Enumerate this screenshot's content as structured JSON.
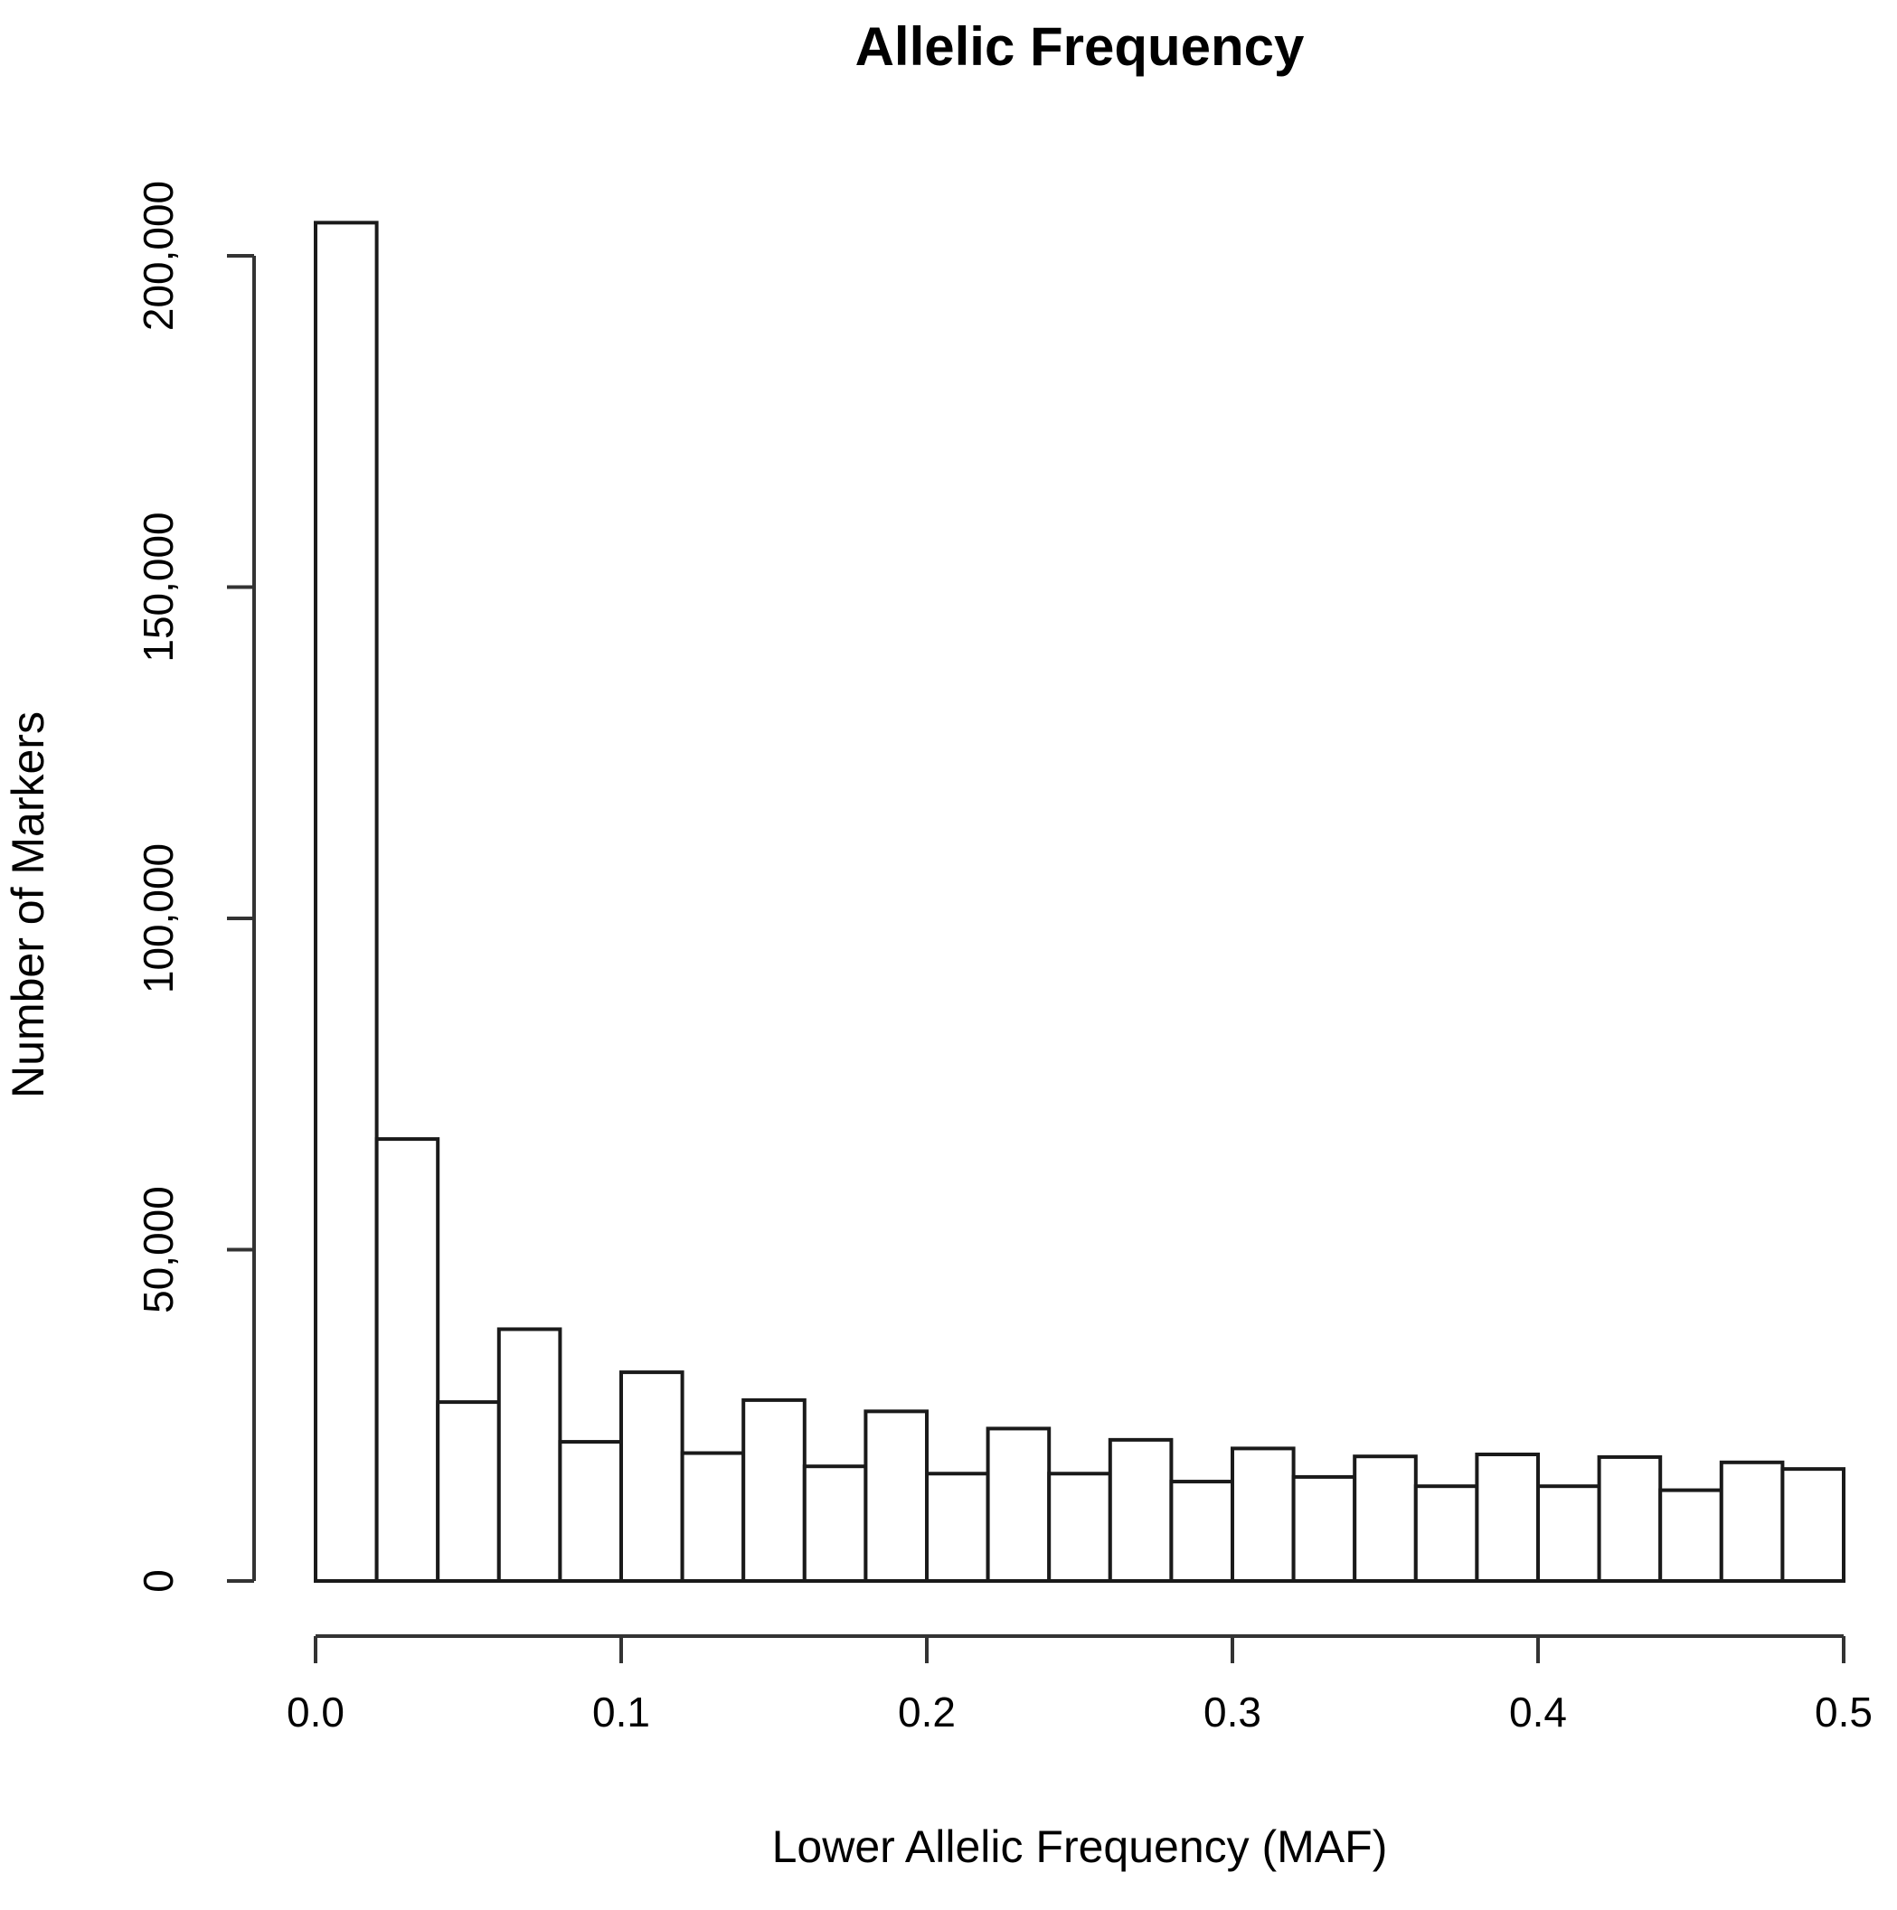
{
  "chart_data": {
    "type": "bar",
    "title": "Allelic Frequency",
    "xlabel": "Lower Allelic Frequency (MAF)",
    "ylabel": "Number of Markers",
    "xlim": [
      0,
      0.5
    ],
    "ylim": [
      0,
      200000
    ],
    "grid": false,
    "x_ticks": [
      {
        "value": 0.0,
        "label": "0.0"
      },
      {
        "value": 0.1,
        "label": "0.1"
      },
      {
        "value": 0.2,
        "label": "0.2"
      },
      {
        "value": 0.3,
        "label": "0.3"
      },
      {
        "value": 0.4,
        "label": "0.4"
      },
      {
        "value": 0.5,
        "label": "0.5"
      }
    ],
    "y_ticks": [
      {
        "value": 0,
        "label": "0"
      },
      {
        "value": 50000,
        "label": "50,000"
      },
      {
        "value": 100000,
        "label": "100,000"
      },
      {
        "value": 150000,
        "label": "150,000"
      },
      {
        "value": 200000,
        "label": "200,000"
      }
    ],
    "bins": [
      {
        "x0": 0.0,
        "x1": 0.02,
        "count": 205000
      },
      {
        "x0": 0.02,
        "x1": 0.04,
        "count": 66700
      },
      {
        "x0": 0.04,
        "x1": 0.06,
        "count": 27000
      },
      {
        "x0": 0.06,
        "x1": 0.08,
        "count": 38000
      },
      {
        "x0": 0.08,
        "x1": 0.1,
        "count": 21000
      },
      {
        "x0": 0.1,
        "x1": 0.12,
        "count": 31500
      },
      {
        "x0": 0.12,
        "x1": 0.14,
        "count": 19300
      },
      {
        "x0": 0.14,
        "x1": 0.16,
        "count": 27300
      },
      {
        "x0": 0.16,
        "x1": 0.18,
        "count": 17300
      },
      {
        "x0": 0.18,
        "x1": 0.2,
        "count": 25600
      },
      {
        "x0": 0.2,
        "x1": 0.22,
        "count": 16200
      },
      {
        "x0": 0.22,
        "x1": 0.24,
        "count": 23000
      },
      {
        "x0": 0.24,
        "x1": 0.26,
        "count": 16200
      },
      {
        "x0": 0.26,
        "x1": 0.28,
        "count": 21300
      },
      {
        "x0": 0.28,
        "x1": 0.3,
        "count": 15000
      },
      {
        "x0": 0.3,
        "x1": 0.32,
        "count": 20000
      },
      {
        "x0": 0.32,
        "x1": 0.34,
        "count": 15700
      },
      {
        "x0": 0.34,
        "x1": 0.36,
        "count": 18800
      },
      {
        "x0": 0.36,
        "x1": 0.38,
        "count": 14300
      },
      {
        "x0": 0.38,
        "x1": 0.4,
        "count": 19100
      },
      {
        "x0": 0.4,
        "x1": 0.42,
        "count": 14300
      },
      {
        "x0": 0.42,
        "x1": 0.44,
        "count": 18700
      },
      {
        "x0": 0.44,
        "x1": 0.46,
        "count": 13700
      },
      {
        "x0": 0.46,
        "x1": 0.48,
        "count": 17900
      },
      {
        "x0": 0.48,
        "x1": 0.5,
        "count": 16900
      }
    ]
  }
}
